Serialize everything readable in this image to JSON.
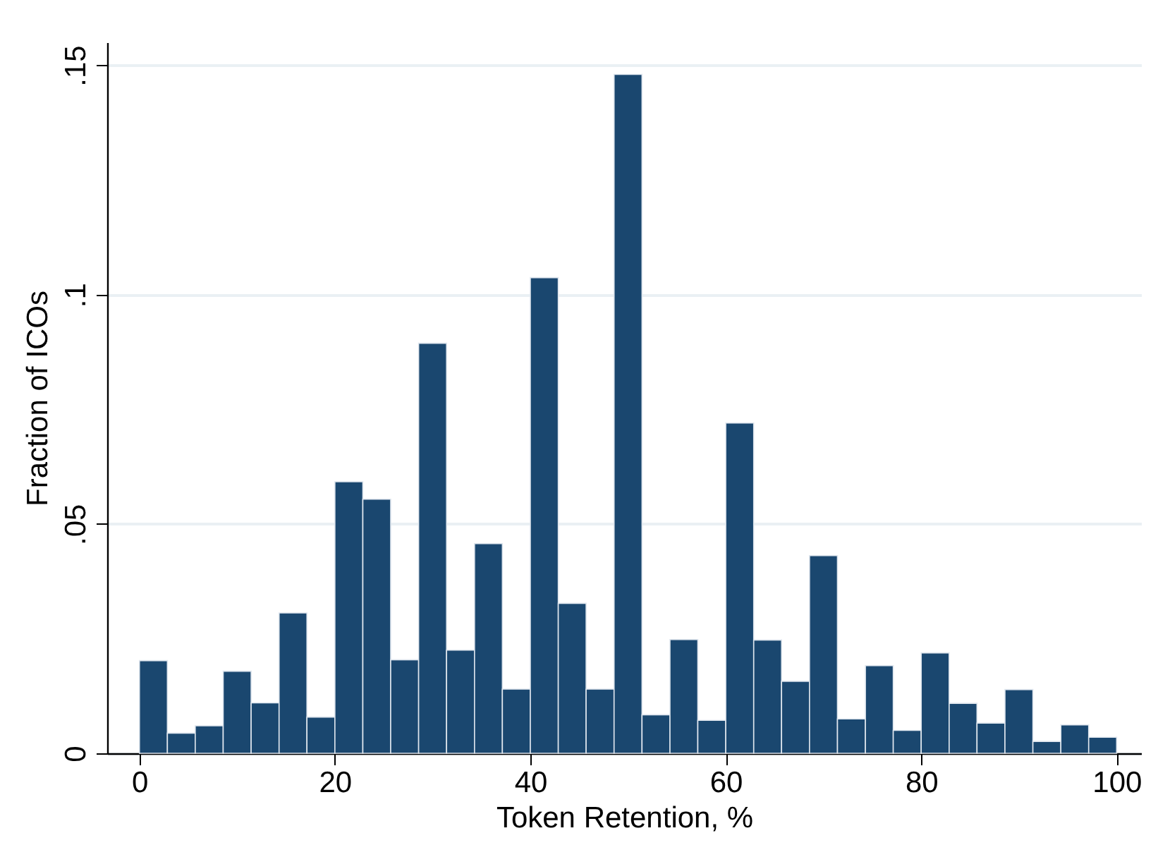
{
  "chart_data": {
    "type": "histogram",
    "xlabel": "Token Retention, %",
    "ylabel": "Fraction of ICOs",
    "color": "#1a476f",
    "bins": [
      0,
      2.86,
      5.71,
      8.57,
      11.43,
      14.29,
      17.14,
      20,
      22.86,
      25.71,
      28.57,
      31.43,
      34.29,
      37.14,
      40,
      42.86,
      45.71,
      48.57,
      51.43,
      54.29,
      57.14,
      60,
      62.86,
      65.71,
      68.57,
      71.43,
      74.29,
      77.14,
      80,
      82.86,
      85.71,
      88.57,
      91.43,
      94.29,
      97.14,
      100
    ],
    "values": [
      0.0202,
      0.0044,
      0.006,
      0.0179,
      0.011,
      0.0306,
      0.0079,
      0.0592,
      0.0554,
      0.0204,
      0.0894,
      0.0225,
      0.0457,
      0.014,
      0.1037,
      0.0327,
      0.014,
      0.148,
      0.0084,
      0.0248,
      0.0072,
      0.072,
      0.0247,
      0.0157,
      0.0431,
      0.0075,
      0.0191,
      0.005,
      0.0219,
      0.0109,
      0.0066,
      0.0139,
      0.0026,
      0.0062,
      0.0035
    ],
    "xlim": [
      -3.3,
      102.5
    ],
    "xticks": [
      0,
      20,
      40,
      60,
      80,
      100
    ],
    "ylim": [
      0,
      0.155
    ],
    "yticks": [
      {
        "value": 0,
        "label": "0"
      },
      {
        "value": 0.05,
        "label": ".05"
      },
      {
        "value": 0.1,
        "label": ".1"
      },
      {
        "value": 0.15,
        "label": ".15"
      }
    ],
    "grid": "y"
  }
}
